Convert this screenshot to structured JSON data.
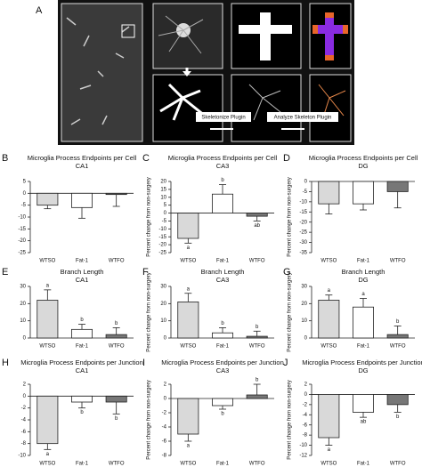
{
  "panel_a": {
    "label": "A",
    "steps": [
      "Skeletonize Plugin",
      "Analyze Skeleton Plugin"
    ]
  },
  "chart_data": [
    {
      "type": "bar",
      "panel": "B",
      "title": "Microglia Process Endpoints per Cell",
      "subtitle": "CA1",
      "categories": [
        "WTSO",
        "Fat-1",
        "WTFO"
      ],
      "values": [
        -5,
        -6,
        -0.5
      ],
      "errors": [
        1.5,
        4.5,
        5
      ],
      "colors": [
        "#d9d9d9",
        "#ffffff",
        "#777777"
      ],
      "ylim": [
        -25,
        5
      ],
      "yticks": [
        5,
        0,
        -5,
        -10,
        -15,
        -20,
        -25
      ]
    },
    {
      "type": "bar",
      "panel": "C",
      "title": "Microglia Process Endpoints per Cell",
      "subtitle": "CA3",
      "y_label": "Percent change from non-surgery",
      "categories": [
        "WTSO",
        "Fat-1",
        "WTFO"
      ],
      "values": [
        -16,
        12,
        -2
      ],
      "errors": [
        3,
        6,
        3
      ],
      "annotations": [
        "a",
        "b",
        "ab"
      ],
      "colors": [
        "#d9d9d9",
        "#ffffff",
        "#777777"
      ],
      "ylim": [
        -25,
        20
      ],
      "yticks": [
        20,
        15,
        10,
        5,
        0,
        -5,
        -10,
        -15,
        -20,
        -25
      ]
    },
    {
      "type": "bar",
      "panel": "D",
      "title": "Microglia Process Endpoints per Cell",
      "subtitle": "DG",
      "y_label": "Percent change from non-surgery",
      "categories": [
        "WTSO",
        "Fat-1",
        "WTFO"
      ],
      "values": [
        -11,
        -11,
        -5
      ],
      "errors": [
        5,
        3,
        8
      ],
      "colors": [
        "#d9d9d9",
        "#ffffff",
        "#777777"
      ],
      "ylim": [
        -35,
        0
      ],
      "yticks": [
        0,
        -5,
        -10,
        -15,
        -20,
        -25,
        -30,
        -35
      ]
    },
    {
      "type": "bar",
      "panel": "E",
      "title": "Branch Length",
      "subtitle": "CA1",
      "categories": [
        "WTSO",
        "Fat-1",
        "WTFO"
      ],
      "values": [
        22,
        5,
        2
      ],
      "errors": [
        6,
        3,
        4
      ],
      "annotations": [
        "a",
        "b",
        "b"
      ],
      "colors": [
        "#d9d9d9",
        "#ffffff",
        "#777777"
      ],
      "ylim": [
        0,
        30
      ],
      "yticks": [
        0,
        10,
        20,
        30
      ]
    },
    {
      "type": "bar",
      "panel": "F",
      "title": "Branch Length",
      "subtitle": "CA3",
      "y_label": "Percent change from non-surgery",
      "categories": [
        "WTSO",
        "Fat-1",
        "WTFO"
      ],
      "values": [
        21,
        3,
        1
      ],
      "errors": [
        5,
        3,
        3
      ],
      "annotations": [
        "a",
        "b",
        "b"
      ],
      "colors": [
        "#d9d9d9",
        "#ffffff",
        "#777777"
      ],
      "ylim": [
        0,
        30
      ],
      "yticks": [
        0,
        10,
        20,
        30
      ]
    },
    {
      "type": "bar",
      "panel": "G",
      "title": "Branch Length",
      "subtitle": "DG",
      "y_label": "Percent change from non-surgery",
      "categories": [
        "WTSO",
        "Fat-1",
        "WTFO"
      ],
      "values": [
        22,
        18,
        2
      ],
      "errors": [
        3,
        5,
        5
      ],
      "annotations": [
        "a",
        "a",
        "b"
      ],
      "colors": [
        "#d9d9d9",
        "#ffffff",
        "#777777"
      ],
      "ylim": [
        0,
        30
      ],
      "yticks": [
        0,
        10,
        20,
        30
      ]
    },
    {
      "type": "bar",
      "panel": "H",
      "title": "Microglia Process Endpoints per Junction",
      "subtitle": "CA1",
      "categories": [
        "WTSO",
        "Fat-1",
        "WTFO"
      ],
      "values": [
        -8,
        -1,
        -1
      ],
      "errors": [
        1,
        1,
        2
      ],
      "annotations": [
        "a",
        "b",
        "b"
      ],
      "colors": [
        "#d9d9d9",
        "#ffffff",
        "#777777"
      ],
      "ylim": [
        -10,
        2
      ],
      "yticks": [
        2,
        0,
        -2,
        -4,
        -6,
        -8,
        -10
      ]
    },
    {
      "type": "bar",
      "panel": "I",
      "title": "Microglia Process Endpoints per Junction",
      "subtitle": "CA3",
      "y_label": "Percent change from non-surgery",
      "categories": [
        "WTSO",
        "Fat-1",
        "WTFO"
      ],
      "values": [
        -5,
        -1,
        0.5
      ],
      "errors": [
        1,
        0.5,
        1.5
      ],
      "annotations": [
        "a",
        "b",
        "b"
      ],
      "colors": [
        "#d9d9d9",
        "#ffffff",
        "#777777"
      ],
      "ylim": [
        -8,
        2
      ],
      "yticks": [
        2,
        0,
        -2,
        -4,
        -6,
        -8
      ]
    },
    {
      "type": "bar",
      "panel": "J",
      "title": "Microglia Process Endpoints per Junction",
      "subtitle": "DG",
      "y_label": "Percent change from non-surgery",
      "categories": [
        "WTSO",
        "Fat-1",
        "WTFO"
      ],
      "values": [
        -8.5,
        -3.5,
        -2
      ],
      "errors": [
        1.5,
        1,
        1.5
      ],
      "annotations": [
        "a",
        "ab",
        "b"
      ],
      "colors": [
        "#d9d9d9",
        "#ffffff",
        "#777777"
      ],
      "ylim": [
        -12,
        2
      ],
      "yticks": [
        2,
        0,
        -2,
        -4,
        -6,
        -8,
        -10,
        -12
      ]
    }
  ]
}
